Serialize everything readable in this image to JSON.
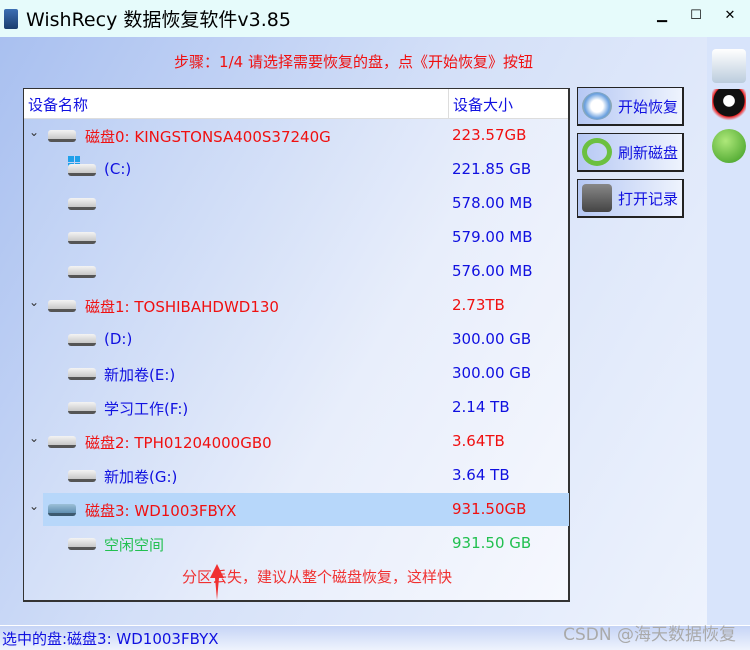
{
  "window": {
    "title": "WishRecy 数据恢复软件v3.85",
    "minimize": "▁",
    "maximize": "☐",
    "close": "✕"
  },
  "step_text": "步骤：1/4 请选择需要恢复的盘，点《开始恢复》按钮",
  "tree": {
    "headers": {
      "name": "设备名称",
      "size": "设备大小"
    },
    "rows": [
      {
        "level": 0,
        "name": "磁盘0: KINGSTONSA400S37240G",
        "size": "223.57GB",
        "color": "red"
      },
      {
        "level": 1,
        "name": "(C:)",
        "size": "221.85 GB",
        "color": "blue",
        "windows": true
      },
      {
        "level": 1,
        "name": "",
        "size": "578.00 MB",
        "color": "blue"
      },
      {
        "level": 1,
        "name": "",
        "size": "579.00 MB",
        "color": "blue"
      },
      {
        "level": 1,
        "name": "",
        "size": "576.00 MB",
        "color": "blue"
      },
      {
        "level": 0,
        "name": "磁盘1: TOSHIBAHDWD130",
        "size": "2.73TB",
        "color": "red"
      },
      {
        "level": 1,
        "name": "(D:)",
        "size": "300.00 GB",
        "color": "blue"
      },
      {
        "level": 1,
        "name": "新加卷(E:)",
        "size": "300.00 GB",
        "color": "blue"
      },
      {
        "level": 1,
        "name": "学习工作(F:)",
        "size": "2.14 TB",
        "color": "blue"
      },
      {
        "level": 0,
        "name": "磁盘2: TPH01204000GB0",
        "size": "3.64TB",
        "color": "red"
      },
      {
        "level": 1,
        "name": "新加卷(G:)",
        "size": "3.64 TB",
        "color": "blue"
      },
      {
        "level": 0,
        "name": "磁盘3: WD1003FBYX",
        "size": "931.50GB",
        "color": "red",
        "selected": true
      },
      {
        "level": 1,
        "name": "空闲空间",
        "size": "931.50 GB",
        "color": "green"
      }
    ]
  },
  "buttons": {
    "start": "开始恢复",
    "refresh": "刷新磁盘",
    "log": "打开记录"
  },
  "annotation": "分区丢失，建议从整个磁盘恢复，这样快",
  "status": "选中的盘:磁盘3: WD1003FBYX",
  "watermark": "CSDN @海天数据恢复"
}
